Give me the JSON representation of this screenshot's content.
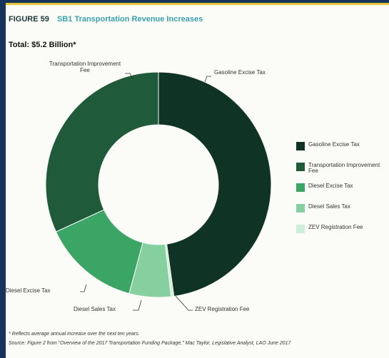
{
  "chart_data": {
    "type": "donut",
    "figure_label": "FIGURE 59",
    "title": "SB1 Transportation Revenue Increases",
    "subtitle": "Total: $5.2 Billion*",
    "categories": [
      "Gasoline Excise Tax",
      "Transportation Improvement Fee",
      "Diesel Excise Tax",
      "Diesel Sales Tax",
      "ZEV Registration Fee"
    ],
    "values": [
      2.4,
      1.6,
      0.7,
      0.3,
      0.02
    ],
    "colors": [
      "#0f3325",
      "#1f5a3b",
      "#3aa564",
      "#86d0a0",
      "#cdeed9"
    ],
    "footnote": "* Reflects average annual increase over the next ten years.",
    "source": "Source: Figure 2 from \"Overview of the 2017 Transportation Funding Package,\" Mac Taylor, Legislative Analyst, LAO June 2017"
  }
}
